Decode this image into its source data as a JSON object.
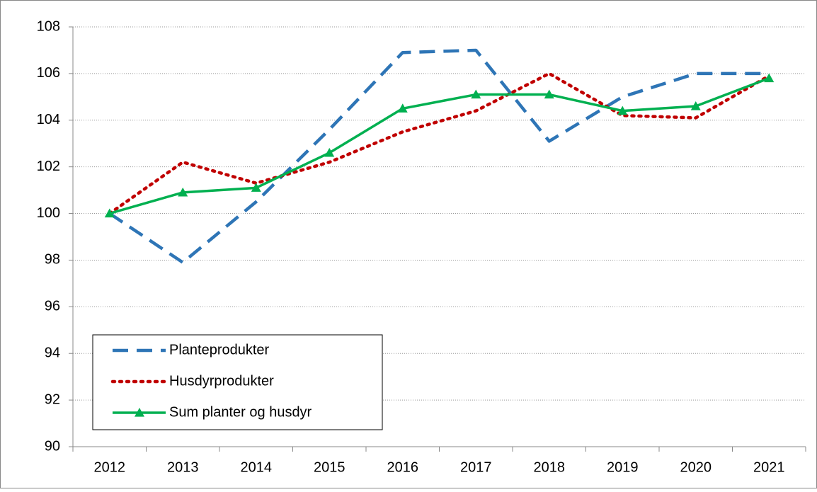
{
  "chart_data": {
    "type": "line",
    "categories": [
      "2012",
      "2013",
      "2014",
      "2015",
      "2016",
      "2017",
      "2018",
      "2019",
      "2020",
      "2021"
    ],
    "series": [
      {
        "name": "Planteprodukter",
        "color": "#2e75b6",
        "style": "dashed",
        "values": [
          100,
          97.9,
          100.5,
          103.6,
          106.9,
          107.0,
          103.1,
          105.0,
          106.0,
          106.0
        ]
      },
      {
        "name": "Husdyrprodukter",
        "color": "#c00000",
        "style": "dotted",
        "values": [
          100,
          102.2,
          101.3,
          102.2,
          103.5,
          104.4,
          106.0,
          104.2,
          104.1,
          105.9
        ]
      },
      {
        "name": "Sum planter og husdyr",
        "color": "#00b050",
        "style": "solid",
        "marker": "triangle",
        "values": [
          100,
          100.9,
          101.1,
          102.6,
          104.5,
          105.1,
          105.1,
          104.4,
          104.6,
          105.8
        ]
      }
    ],
    "ylim": [
      90,
      108
    ],
    "yticks": [
      90,
      92,
      94,
      96,
      98,
      100,
      102,
      104,
      106,
      108
    ],
    "grid": true,
    "legend": "lower left"
  }
}
